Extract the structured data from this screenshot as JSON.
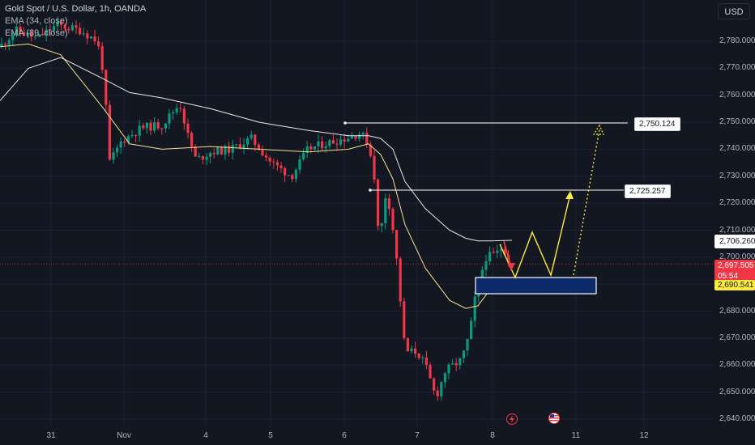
{
  "legend": {
    "symbol": "Gold Spot / U.S. Dollar, 1h, OANDA",
    "ema34": "EMA (34, close)",
    "ema89": "EMA (89, close)"
  },
  "currency": "USD",
  "y_ticks": [
    "2,780.000",
    "2,770.000",
    "2,760.000",
    "2,750.000",
    "2,740.000",
    "2,730.000",
    "2,720.000",
    "2,710.000",
    "2,700.000",
    "2,690.000",
    "2,680.000",
    "2,670.000",
    "2,660.000",
    "2,650.000",
    "2,640.000"
  ],
  "x_ticks": [
    "31",
    "Nov",
    "4",
    "5",
    "6",
    "7",
    "8",
    "11",
    "12"
  ],
  "price_labels": {
    "target1": "2,750.124",
    "target2": "2,725.257",
    "ema89_value": "2,706.260",
    "current_price": "2,697.505",
    "countdown": "05:54",
    "ema34_value": "2,690.541"
  },
  "colors": {
    "background": "#131722",
    "up": "#089981",
    "down": "#f23645",
    "ema34": "#f7e08b",
    "ema89": "#ffffff",
    "zone_fill": "#0d2a6b",
    "projection": "#ffeb3b"
  },
  "icons": [
    "lightning-icon",
    "us-flag-icon"
  ],
  "chart_data": {
    "type": "candlestick",
    "title": "Gold Spot / U.S. Dollar, 1h, OANDA",
    "ylim": [
      2640,
      2785
    ],
    "series": [
      {
        "name": "EMA (34, close)",
        "values": [
          2778,
          2779,
          2775,
          2755,
          2742,
          2740,
          2741,
          2740,
          2739,
          2740,
          2742,
          2738,
          2729,
          2712,
          2696,
          2684,
          2681,
          2682,
          2688,
          2690.541
        ]
      },
      {
        "name": "EMA (89, close)",
        "values": [
          2758,
          2770,
          2774,
          2766,
          2761,
          2759,
          2755,
          2750,
          2747,
          2745,
          2745,
          2744,
          2740,
          2728,
          2718,
          2710,
          2707,
          2706,
          2706,
          2706.26
        ]
      }
    ],
    "levels": [
      2750.124,
      2725.257
    ],
    "current_price": 2697.505,
    "zone": [
      2688.5,
      2694.5
    ],
    "projection_path": [
      2706,
      2694,
      2709,
      2694,
      2724
    ],
    "projection_dotted": [
      2694,
      2749
    ]
  }
}
